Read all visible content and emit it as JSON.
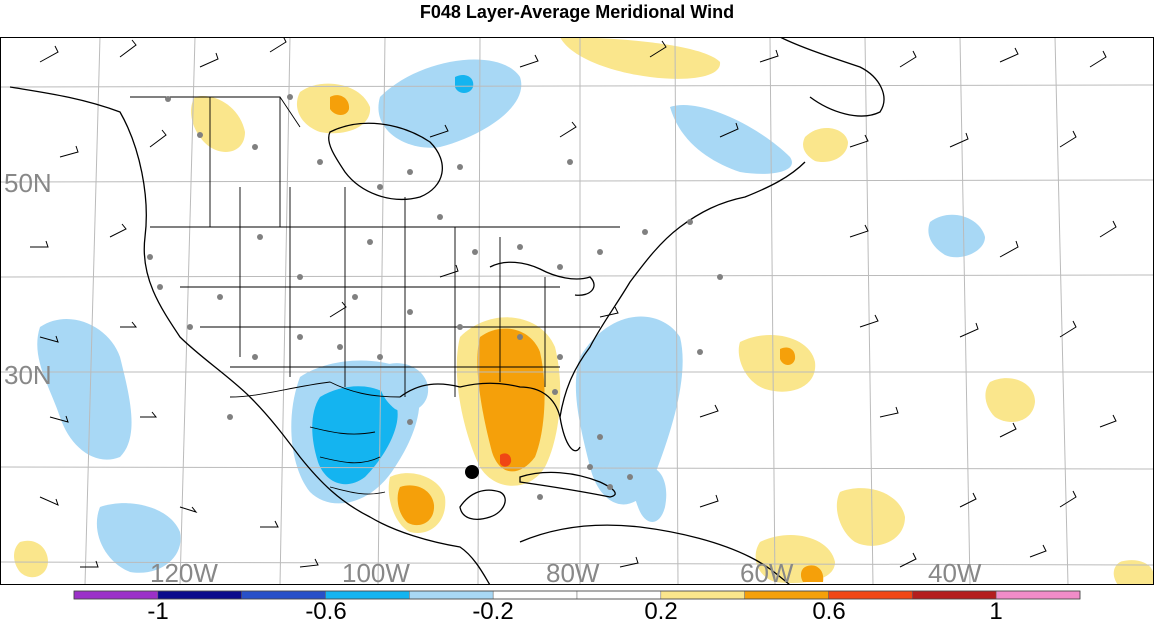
{
  "title": "F048 Layer-Average Meridional Wind",
  "lat_labels": [
    "50N",
    "30N"
  ],
  "lon_labels": [
    "120W",
    "100W",
    "80W",
    "60W",
    "40W"
  ],
  "colorbar": {
    "tick_labels": [
      "-1",
      "-0.6",
      "-0.2",
      "0.2",
      "0.6",
      "1"
    ],
    "colors": [
      "#9b30c8",
      "#0a0a8c",
      "#2850c8",
      "#14b4f0",
      "#a8d8f5",
      "#ffffff",
      "#ffffff",
      "#fae68c",
      "#f5a00a",
      "#f04614",
      "#b41e1e",
      "#f08cc8"
    ]
  },
  "colors": {
    "positive_light": "#fae68c",
    "positive_strong": "#f5a00a",
    "positive_max": "#f04614",
    "negative_light": "#a8d8f5",
    "negative_strong": "#14b4f0",
    "grid": "#bbbbbb",
    "coastline": "#000000",
    "station_dot": "#808080"
  }
}
